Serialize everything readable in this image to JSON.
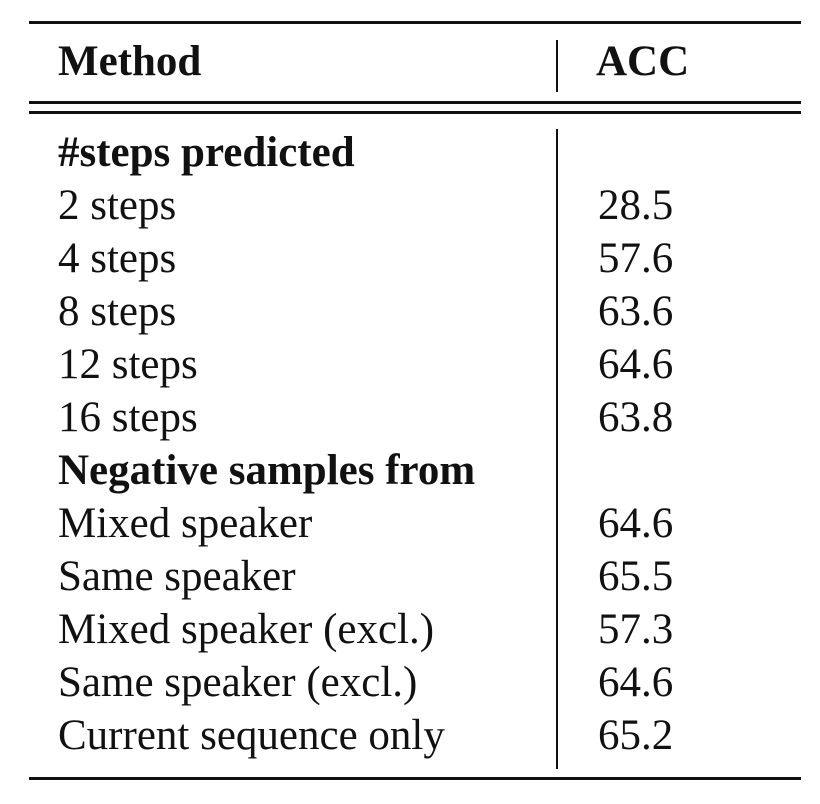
{
  "table": {
    "header": {
      "method": "Method",
      "acc": "ACC"
    },
    "sections": [
      {
        "title": "#steps predicted",
        "rows": [
          {
            "label": "2 steps",
            "value": "28.5"
          },
          {
            "label": "4 steps",
            "value": "57.6"
          },
          {
            "label": "8 steps",
            "value": "63.6"
          },
          {
            "label": "12 steps",
            "value": "64.6"
          },
          {
            "label": "16 steps",
            "value": "63.8"
          }
        ]
      },
      {
        "title": "Negative samples from",
        "rows": [
          {
            "label": "Mixed speaker",
            "value": "64.6"
          },
          {
            "label": "Same speaker",
            "value": "65.5"
          },
          {
            "label": "Mixed speaker (excl.)",
            "value": "57.3"
          },
          {
            "label": "Same speaker (excl.)",
            "value": "64.6"
          },
          {
            "label": "Current sequence only",
            "value": "65.2"
          }
        ]
      }
    ]
  }
}
